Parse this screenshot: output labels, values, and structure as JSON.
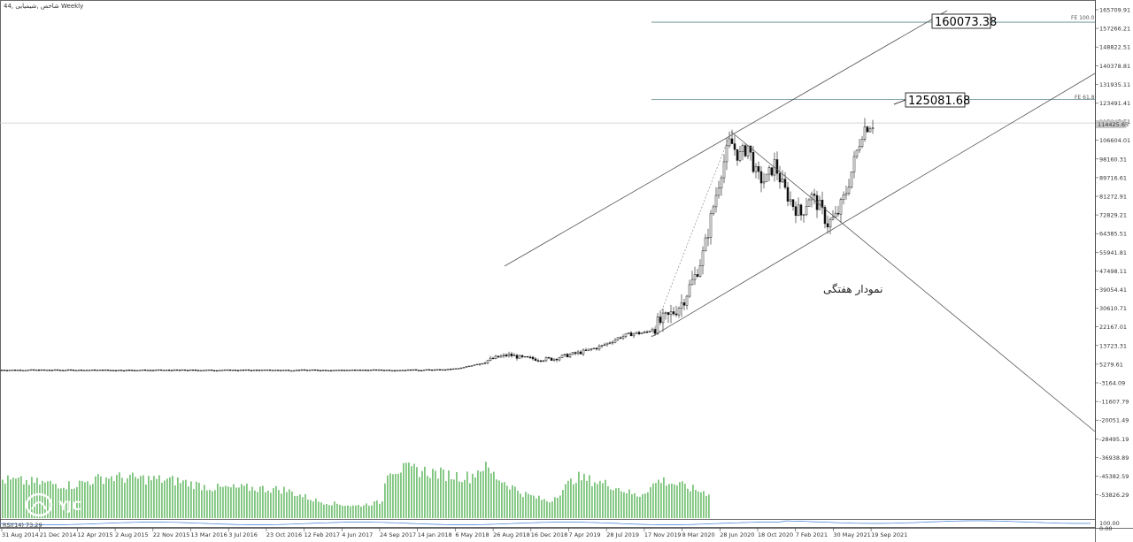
{
  "header": {
    "title": "شاخص ,شیمیایی ,44 Weekly"
  },
  "annotation": "نمودار هفتگی",
  "watermark": "YJC",
  "chart_data": {
    "type": "candlestick",
    "title": "شاخص ,شیمیایی ,44 Weekly",
    "y_ticks": [
      "165709.91",
      "157266.21",
      "148822.51",
      "140378.81",
      "131935.11",
      "123491.41",
      "115047.71",
      "106604.01",
      "98160.31",
      "89716.61",
      "81272.91",
      "72829.21",
      "64385.51",
      "55941.81",
      "47498.11",
      "39054.41",
      "30610.71",
      "22167.01",
      "13723.31",
      "5279.61",
      "-3164.09",
      "-11607.79",
      "-20051.49",
      "-28495.19",
      "-36938.89",
      "-45382.59",
      "-53826.29"
    ],
    "x_ticks": [
      "31 Aug 2014",
      "21 Dec 2014",
      "12 Apr 2015",
      "2 Aug 2015",
      "22 Nov 2015",
      "13 Mar 2016",
      "3 Jul 2016",
      "23 Oct 2016",
      "12 Feb 2017",
      "4 Jun 2017",
      "24 Sep 2017",
      "14 Jan 2018",
      "6 May 2018",
      "26 Aug 2018",
      "16 Dec 2018",
      "7 Apr 2019",
      "28 Jul 2019",
      "17 Nov 2019",
      "8 Mar 2020",
      "28 Jun 2020",
      "18 Oct 2020",
      "7 Feb 2021",
      "30 May 2021",
      "19 Sep 2021"
    ],
    "current_price_label": "114425.65",
    "fib_levels": [
      {
        "name": "FE 100.0",
        "value": 160073.38,
        "label": "160073.38"
      },
      {
        "name": "FE 61.8",
        "value": 125081.68,
        "label": "125081.68"
      }
    ],
    "rsi": {
      "label": "RSI(14) 73.29",
      "ticks": [
        "100.00",
        "0.00"
      ]
    },
    "price_path": [
      [
        0,
        2630
      ],
      [
        150,
        2570
      ],
      [
        300,
        2580
      ],
      [
        450,
        2610
      ],
      [
        500,
        2700
      ],
      [
        520,
        3400
      ],
      [
        540,
        5500
      ],
      [
        560,
        8200
      ],
      [
        575,
        9500
      ],
      [
        590,
        8100
      ],
      [
        610,
        7500
      ],
      [
        625,
        7700
      ],
      [
        640,
        9200
      ],
      [
        660,
        11000
      ],
      [
        680,
        13500
      ],
      [
        700,
        17500
      ],
      [
        715,
        19200
      ],
      [
        730,
        19500
      ],
      [
        745,
        24000
      ],
      [
        755,
        26500
      ],
      [
        770,
        33000
      ],
      [
        785,
        45000
      ],
      [
        795,
        56000
      ],
      [
        805,
        75000
      ],
      [
        815,
        93000
      ],
      [
        825,
        106500
      ],
      [
        835,
        99000
      ],
      [
        845,
        104000
      ],
      [
        855,
        90000
      ],
      [
        865,
        88000
      ],
      [
        875,
        96000
      ],
      [
        885,
        85000
      ],
      [
        895,
        78000
      ],
      [
        905,
        73000
      ],
      [
        915,
        82000
      ],
      [
        925,
        77000
      ],
      [
        935,
        69000
      ],
      [
        945,
        72000
      ],
      [
        955,
        82000
      ],
      [
        965,
        97000
      ],
      [
        975,
        112000
      ],
      [
        985,
        114425
      ]
    ],
    "volume_path": [
      [
        0,
        70
      ],
      [
        40,
        65
      ],
      [
        80,
        60
      ],
      [
        120,
        75
      ],
      [
        160,
        72
      ],
      [
        200,
        68
      ],
      [
        240,
        55
      ],
      [
        280,
        55
      ],
      [
        320,
        52
      ],
      [
        360,
        30
      ],
      [
        400,
        22
      ],
      [
        432,
        30
      ],
      [
        435,
        90
      ],
      [
        470,
        88
      ],
      [
        500,
        80
      ],
      [
        530,
        75
      ],
      [
        545,
        95
      ],
      [
        560,
        75
      ],
      [
        590,
        45
      ],
      [
        620,
        30
      ],
      [
        650,
        75
      ],
      [
        690,
        60
      ],
      [
        720,
        40
      ],
      [
        745,
        70
      ],
      [
        800,
        45
      ]
    ]
  }
}
